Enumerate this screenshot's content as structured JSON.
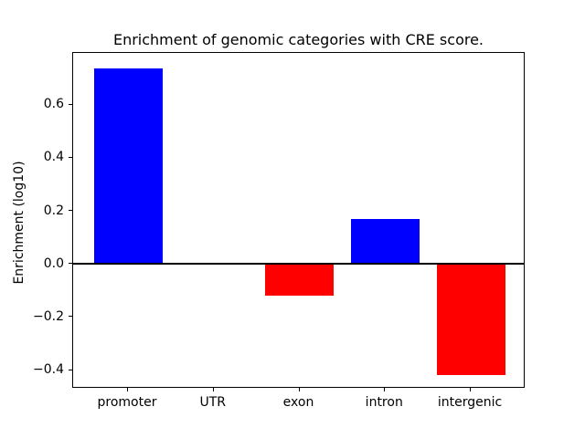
{
  "figure": {
    "title": "Enrichment of genomic categories with CRE score.",
    "ylabel": "Enrichment (log10)"
  },
  "chart_data": {
    "type": "bar",
    "title": "Enrichment of genomic categories with CRE score.",
    "xlabel": "",
    "ylabel": "Enrichment (log10)",
    "categories": [
      "promoter",
      "UTR",
      "exon",
      "intron",
      "intergenic"
    ],
    "values": [
      0.735,
      0.005,
      -0.12,
      0.17,
      -0.42
    ],
    "bar_colors": [
      "#0000ff",
      "#0000ff",
      "#ff0000",
      "#0000ff",
      "#ff0000"
    ],
    "positive_color": "#0000ff",
    "negative_color": "#ff0000",
    "yticks": [
      -0.4,
      -0.2,
      0.0,
      0.2,
      0.4,
      0.6
    ],
    "ytick_labels": [
      "−0.4",
      "−0.2",
      "0.0",
      "0.2",
      "0.4",
      "0.6"
    ],
    "ylim": [
      -0.47,
      0.795
    ],
    "xlim": [
      -0.64,
      4.64
    ],
    "bar_width": 0.8,
    "grid": false,
    "zero_line": true,
    "legend": null,
    "axis_color": "#000000",
    "background_color": "#ffffff"
  }
}
